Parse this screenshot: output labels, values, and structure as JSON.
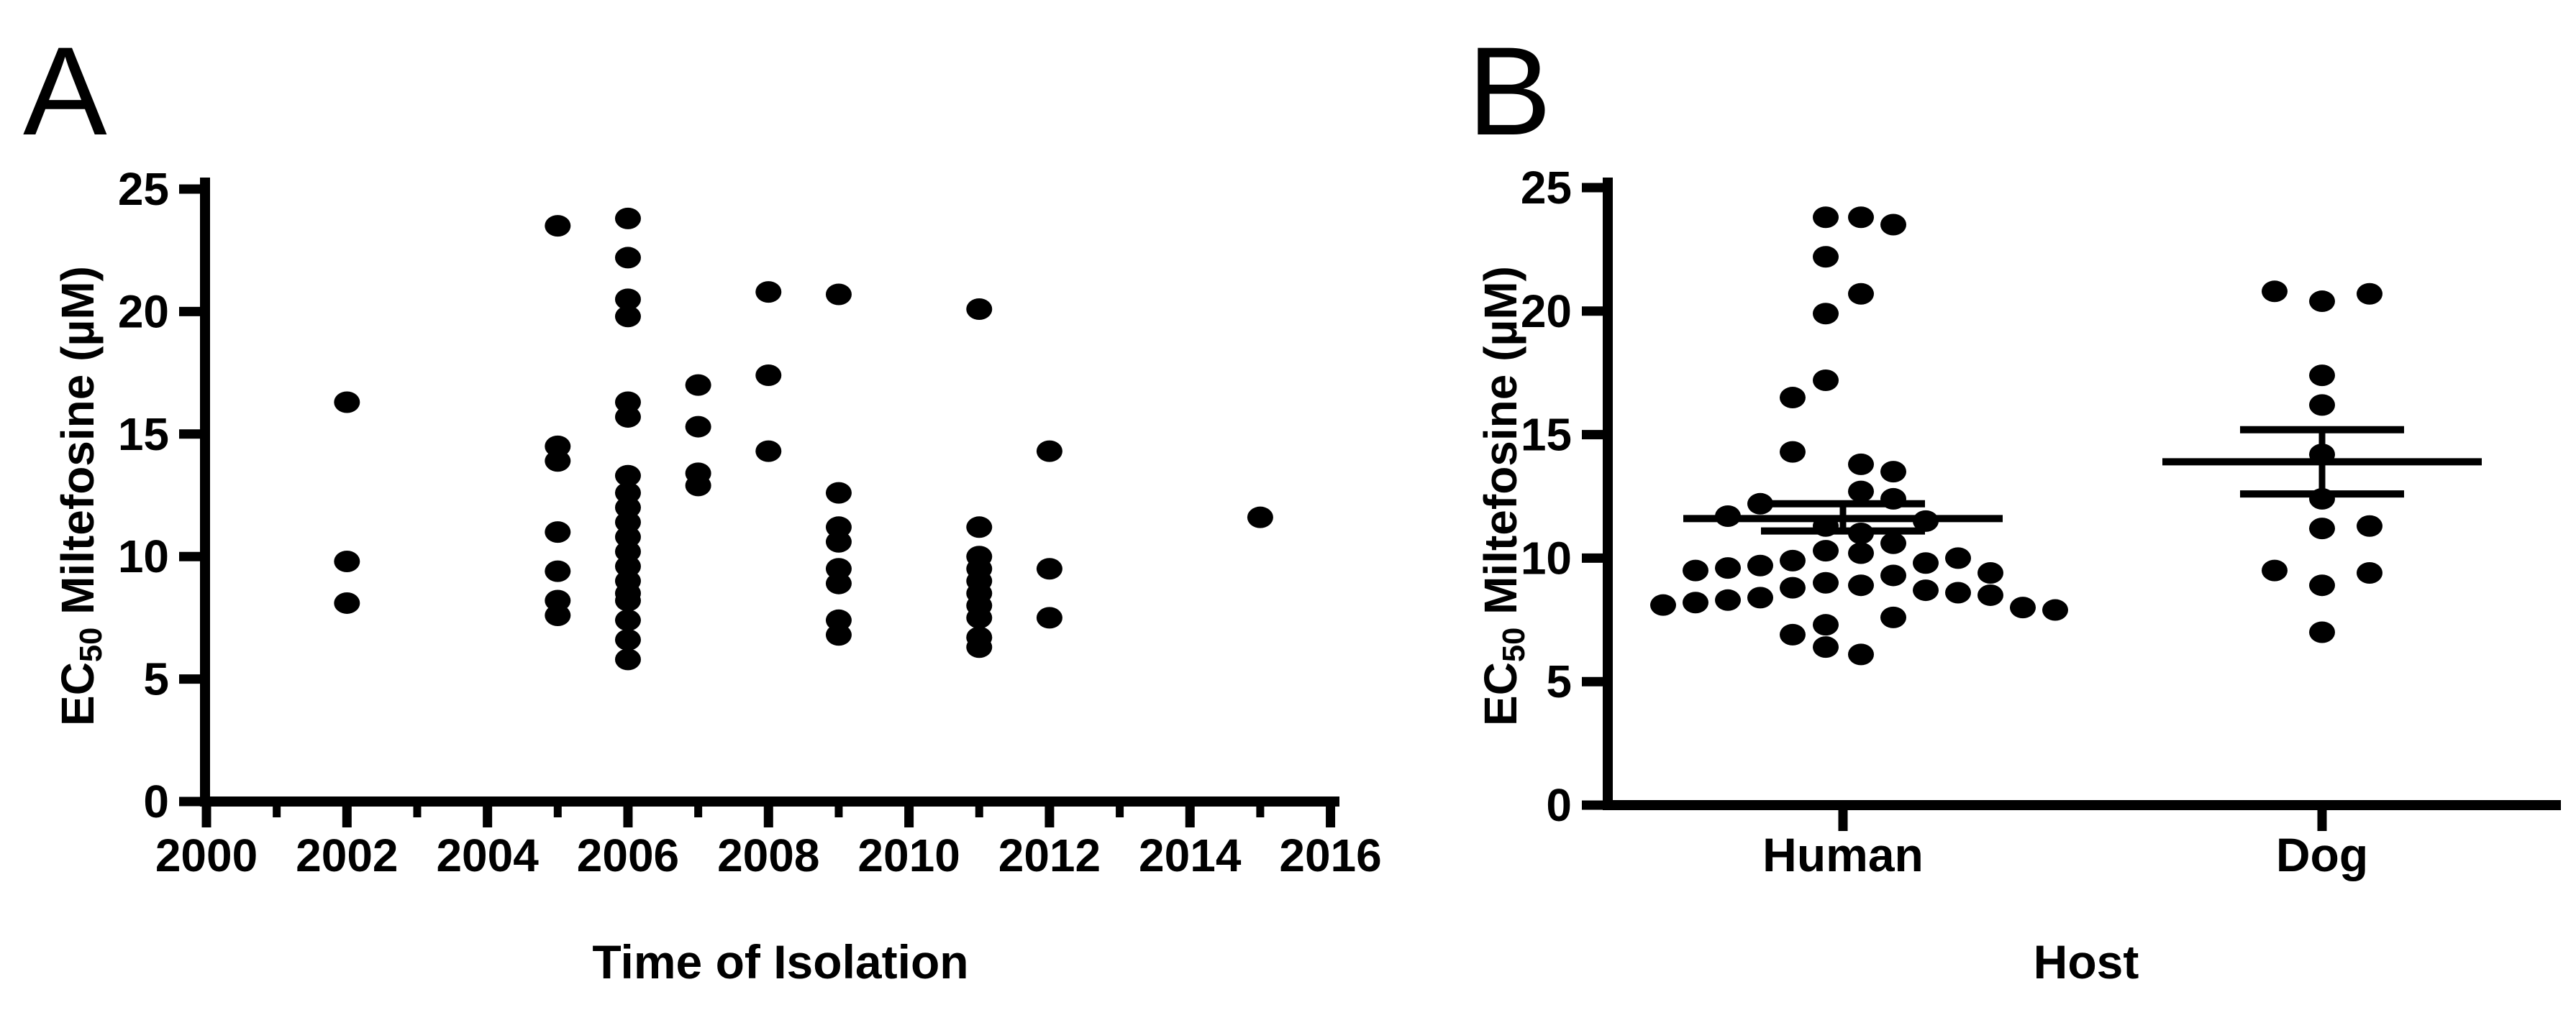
{
  "figure_type": "two-panel scientific scatter figure",
  "panelA": {
    "letter": "A"
  },
  "panelB": {
    "letter": "B"
  },
  "axis_color": "#000000",
  "point_color": "#000000",
  "chart_data": [
    {
      "type": "scatter",
      "panel_letter": "A",
      "title": "",
      "xlabel": "Time of Isolation",
      "ylabel": {
        "pre": "EC",
        "sub": "50",
        "post": " Miltefosine (µM)"
      },
      "xlim": [
        2000,
        2016
      ],
      "ylim": [
        0,
        25
      ],
      "grid": false,
      "x_major_ticks": [
        2000,
        2002,
        2004,
        2006,
        2008,
        2010,
        2012,
        2014,
        2016
      ],
      "x_minor_ticks": [
        2001,
        2003,
        2005,
        2007,
        2009,
        2011,
        2013,
        2015
      ],
      "y_ticks": [
        0,
        5,
        10,
        15,
        20,
        25
      ],
      "points": [
        {
          "x": 2002,
          "y": 16.3
        },
        {
          "x": 2002,
          "y": 9.8
        },
        {
          "x": 2002,
          "y": 8.1
        },
        {
          "x": 2005,
          "y": 23.5
        },
        {
          "x": 2005,
          "y": 14.5
        },
        {
          "x": 2005,
          "y": 13.9
        },
        {
          "x": 2005,
          "y": 11.0
        },
        {
          "x": 2005,
          "y": 9.4
        },
        {
          "x": 2005,
          "y": 8.2
        },
        {
          "x": 2005,
          "y": 7.6
        },
        {
          "x": 2006,
          "y": 23.8
        },
        {
          "x": 2006,
          "y": 22.2
        },
        {
          "x": 2006,
          "y": 20.5
        },
        {
          "x": 2006,
          "y": 19.8
        },
        {
          "x": 2006,
          "y": 16.3
        },
        {
          "x": 2006,
          "y": 15.7
        },
        {
          "x": 2006,
          "y": 13.3
        },
        {
          "x": 2006,
          "y": 12.6
        },
        {
          "x": 2006,
          "y": 12.0
        },
        {
          "x": 2006,
          "y": 11.4
        },
        {
          "x": 2006,
          "y": 10.8
        },
        {
          "x": 2006,
          "y": 10.2
        },
        {
          "x": 2006,
          "y": 9.6
        },
        {
          "x": 2006,
          "y": 9.0
        },
        {
          "x": 2006,
          "y": 8.5
        },
        {
          "x": 2006,
          "y": 8.2
        },
        {
          "x": 2006,
          "y": 7.4
        },
        {
          "x": 2006,
          "y": 6.6
        },
        {
          "x": 2006,
          "y": 5.8
        },
        {
          "x": 2007,
          "y": 17.0
        },
        {
          "x": 2007,
          "y": 15.3
        },
        {
          "x": 2007,
          "y": 13.4
        },
        {
          "x": 2007,
          "y": 12.9
        },
        {
          "x": 2008,
          "y": 20.8
        },
        {
          "x": 2008,
          "y": 17.4
        },
        {
          "x": 2008,
          "y": 14.3
        },
        {
          "x": 2009,
          "y": 20.7
        },
        {
          "x": 2009,
          "y": 12.6
        },
        {
          "x": 2009,
          "y": 11.2
        },
        {
          "x": 2009,
          "y": 10.6
        },
        {
          "x": 2009,
          "y": 9.5
        },
        {
          "x": 2009,
          "y": 8.9
        },
        {
          "x": 2009,
          "y": 7.4
        },
        {
          "x": 2009,
          "y": 6.8
        },
        {
          "x": 2011,
          "y": 20.1
        },
        {
          "x": 2011,
          "y": 11.2
        },
        {
          "x": 2011,
          "y": 10.0
        },
        {
          "x": 2011,
          "y": 9.5
        },
        {
          "x": 2011,
          "y": 9.0
        },
        {
          "x": 2011,
          "y": 8.5
        },
        {
          "x": 2011,
          "y": 8.0
        },
        {
          "x": 2011,
          "y": 7.5
        },
        {
          "x": 2011,
          "y": 6.7
        },
        {
          "x": 2011,
          "y": 6.3
        },
        {
          "x": 2012,
          "y": 14.3
        },
        {
          "x": 2012,
          "y": 9.5
        },
        {
          "x": 2012,
          "y": 7.5
        },
        {
          "x": 2015,
          "y": 11.6
        }
      ]
    },
    {
      "type": "scatter",
      "panel_letter": "B",
      "title": "",
      "xlabel": "Host",
      "ylabel": {
        "pre": "EC",
        "sub": "50",
        "post": " Miltefosine (µM)"
      },
      "ylim": [
        0,
        25
      ],
      "grid": false,
      "y_ticks": [
        0,
        5,
        10,
        15,
        20,
        25
      ],
      "categories": [
        "Human",
        "Dog"
      ],
      "error_bar_style": "mean with SEM",
      "groups": [
        {
          "name": "Human",
          "mean": 11.6,
          "sem_upper": 12.2,
          "sem_lower": 11.1,
          "points": [
            {
              "v": 23.8,
              "dx": -24
            },
            {
              "v": 23.8,
              "dx": 25
            },
            {
              "v": 23.5,
              "dx": 70
            },
            {
              "v": 22.2,
              "dx": -24
            },
            {
              "v": 20.7,
              "dx": 25
            },
            {
              "v": 19.9,
              "dx": -24
            },
            {
              "v": 17.2,
              "dx": -24
            },
            {
              "v": 16.5,
              "dx": -70
            },
            {
              "v": 14.3,
              "dx": -70
            },
            {
              "v": 13.8,
              "dx": 25
            },
            {
              "v": 13.5,
              "dx": 70
            },
            {
              "v": 12.7,
              "dx": 25
            },
            {
              "v": 12.4,
              "dx": 70
            },
            {
              "v": 12.2,
              "dx": -115
            },
            {
              "v": 11.7,
              "dx": -160
            },
            {
              "v": 11.5,
              "dx": 115
            },
            {
              "v": 11.3,
              "dx": -24
            },
            {
              "v": 11.0,
              "dx": 25
            },
            {
              "v": 10.6,
              "dx": 70
            },
            {
              "v": 10.3,
              "dx": -24
            },
            {
              "v": 10.2,
              "dx": 25
            },
            {
              "v": 10.0,
              "dx": 160
            },
            {
              "v": 9.9,
              "dx": -70
            },
            {
              "v": 9.8,
              "dx": 115
            },
            {
              "v": 9.7,
              "dx": -115
            },
            {
              "v": 9.6,
              "dx": -160
            },
            {
              "v": 9.5,
              "dx": -205
            },
            {
              "v": 9.4,
              "dx": 205
            },
            {
              "v": 9.3,
              "dx": 70
            },
            {
              "v": 9.0,
              "dx": -24
            },
            {
              "v": 8.9,
              "dx": 25
            },
            {
              "v": 8.8,
              "dx": -70
            },
            {
              "v": 8.7,
              "dx": 115
            },
            {
              "v": 8.6,
              "dx": 160
            },
            {
              "v": 8.5,
              "dx": 205
            },
            {
              "v": 8.4,
              "dx": -115
            },
            {
              "v": 8.3,
              "dx": -160
            },
            {
              "v": 8.2,
              "dx": -205
            },
            {
              "v": 8.1,
              "dx": -250
            },
            {
              "v": 8.0,
              "dx": 250
            },
            {
              "v": 7.9,
              "dx": 295
            },
            {
              "v": 7.6,
              "dx": 70
            },
            {
              "v": 7.3,
              "dx": -24
            },
            {
              "v": 6.9,
              "dx": -70
            },
            {
              "v": 6.4,
              "dx": -24
            },
            {
              "v": 6.1,
              "dx": 25
            }
          ]
        },
        {
          "name": "Dog",
          "mean": 13.9,
          "sem_upper": 15.2,
          "sem_lower": 12.6,
          "points": [
            {
              "v": 20.8,
              "dx": -66
            },
            {
              "v": 20.4,
              "dx": 0
            },
            {
              "v": 20.7,
              "dx": 66
            },
            {
              "v": 17.4,
              "dx": 0
            },
            {
              "v": 16.2,
              "dx": 0
            },
            {
              "v": 14.2,
              "dx": 0
            },
            {
              "v": 12.4,
              "dx": 0
            },
            {
              "v": 11.2,
              "dx": 0
            },
            {
              "v": 11.3,
              "dx": 66
            },
            {
              "v": 9.5,
              "dx": -66
            },
            {
              "v": 8.9,
              "dx": 0
            },
            {
              "v": 9.4,
              "dx": 66
            },
            {
              "v": 7.0,
              "dx": 0
            }
          ]
        }
      ]
    }
  ]
}
